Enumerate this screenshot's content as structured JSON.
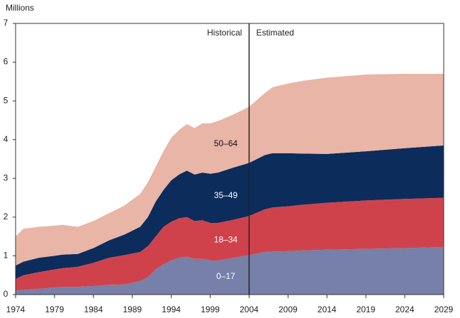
{
  "chart_data": {
    "type": "stacked_area",
    "y_axis_label": "Millions",
    "annotations": {
      "divider": 2004,
      "left": "Historical",
      "right": "Estimated"
    },
    "x": [
      1974,
      1975,
      1977,
      1979,
      1980,
      1982,
      1984,
      1986,
      1988,
      1990,
      1991,
      1992,
      1993,
      1994,
      1995,
      1996,
      1997,
      1998,
      1999,
      2000,
      2002,
      2004,
      2006,
      2007,
      2009,
      2011,
      2014,
      2019,
      2024,
      2029
    ],
    "series": [
      {
        "name": "0–17",
        "color": "#7680a9",
        "label_color": "#ffffff",
        "values": [
          0.1,
          0.12,
          0.15,
          0.18,
          0.2,
          0.2,
          0.22,
          0.25,
          0.26,
          0.35,
          0.45,
          0.65,
          0.78,
          0.88,
          0.95,
          0.98,
          0.92,
          0.92,
          0.88,
          0.88,
          0.95,
          1.02,
          1.1,
          1.11,
          1.12,
          1.14,
          1.16,
          1.18,
          1.2,
          1.23
        ]
      },
      {
        "name": "18–34",
        "color": "#d0424b",
        "label_color": "#ffffff",
        "values": [
          0.3,
          0.38,
          0.43,
          0.47,
          0.48,
          0.52,
          0.6,
          0.7,
          0.76,
          0.75,
          0.8,
          0.85,
          0.97,
          1.0,
          1.02,
          1.02,
          0.98,
          1.0,
          0.97,
          0.97,
          0.98,
          1.01,
          1.1,
          1.14,
          1.16,
          1.18,
          1.21,
          1.25,
          1.27,
          1.27
        ]
      },
      {
        "name": "35–49",
        "color": "#0c2c5b",
        "label_color": "#ffffff",
        "values": [
          0.35,
          0.35,
          0.37,
          0.35,
          0.35,
          0.33,
          0.38,
          0.45,
          0.53,
          0.65,
          0.75,
          0.9,
          0.95,
          1.07,
          1.13,
          1.2,
          1.2,
          1.23,
          1.27,
          1.3,
          1.35,
          1.37,
          1.4,
          1.4,
          1.37,
          1.32,
          1.26,
          1.27,
          1.31,
          1.35
        ]
      },
      {
        "name": "50–64",
        "color": "#e8b5a6",
        "label_color": "#111111",
        "values": [
          0.75,
          0.85,
          0.8,
          0.78,
          0.77,
          0.7,
          0.7,
          0.7,
          0.75,
          0.85,
          0.9,
          0.9,
          1.0,
          1.1,
          1.15,
          1.2,
          1.2,
          1.27,
          1.3,
          1.33,
          1.37,
          1.45,
          1.6,
          1.7,
          1.8,
          1.88,
          1.97,
          1.98,
          1.92,
          1.85
        ]
      }
    ],
    "xlim": [
      1974,
      2029
    ],
    "xticks": [
      1974,
      1979,
      1984,
      1989,
      1994,
      1999,
      2004,
      2009,
      2014,
      2019,
      2024,
      2029
    ],
    "ylim": [
      0,
      7
    ],
    "yticks": [
      0,
      1,
      2,
      3,
      4,
      5,
      6,
      7
    ],
    "series_label_x": 2001
  }
}
